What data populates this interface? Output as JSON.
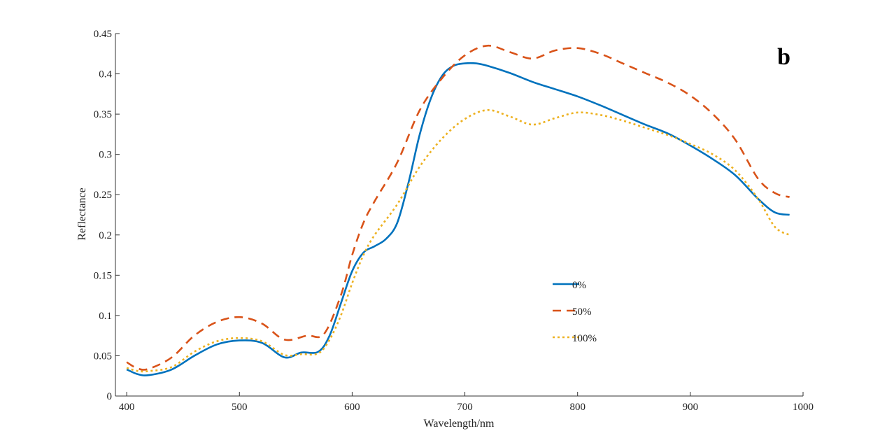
{
  "chart_data": {
    "type": "line",
    "panel_label": "b",
    "xlabel": "Wavelength/nm",
    "ylabel": "Reflectance",
    "xlim": [
      390,
      1000
    ],
    "ylim": [
      0,
      0.45
    ],
    "xticks": [
      400,
      500,
      600,
      700,
      800,
      900,
      1000
    ],
    "xtick_labels": [
      "400",
      "500",
      "600",
      "700",
      "800",
      "900",
      "1000"
    ],
    "yticks": [
      0,
      0.05,
      0.1,
      0.15,
      0.2,
      0.25,
      0.3,
      0.35,
      0.4,
      0.45
    ],
    "ytick_labels": [
      "0",
      "0.05",
      "0.1",
      "0.15",
      "0.2",
      "0.25",
      "0.3",
      "0.35",
      "0.4",
      "0.45"
    ],
    "grid": false,
    "legend_position": "center-right",
    "series": [
      {
        "name": "0%",
        "color": "#0072BD",
        "style": "solid",
        "x": [
          400,
          410,
          420,
          440,
          460,
          480,
          500,
          520,
          540,
          555,
          570,
          580,
          590,
          600,
          610,
          620,
          630,
          640,
          650,
          660,
          670,
          680,
          690,
          700,
          710,
          720,
          740,
          760,
          780,
          800,
          820,
          840,
          860,
          880,
          900,
          920,
          940,
          960,
          975,
          988
        ],
        "values": [
          0.033,
          0.027,
          0.026,
          0.033,
          0.05,
          0.064,
          0.069,
          0.066,
          0.048,
          0.054,
          0.055,
          0.075,
          0.115,
          0.155,
          0.178,
          0.186,
          0.195,
          0.215,
          0.265,
          0.325,
          0.37,
          0.398,
          0.41,
          0.413,
          0.413,
          0.41,
          0.401,
          0.39,
          0.381,
          0.372,
          0.361,
          0.349,
          0.337,
          0.326,
          0.311,
          0.294,
          0.274,
          0.245,
          0.228,
          0.225
        ]
      },
      {
        "name": "50%",
        "color": "#D95319",
        "style": "dashed",
        "x": [
          400,
          410,
          420,
          440,
          460,
          480,
          500,
          520,
          540,
          560,
          575,
          590,
          600,
          610,
          620,
          640,
          660,
          680,
          700,
          720,
          740,
          760,
          780,
          800,
          820,
          840,
          860,
          880,
          900,
          920,
          940,
          960,
          975,
          988
        ],
        "values": [
          0.042,
          0.034,
          0.034,
          0.048,
          0.075,
          0.092,
          0.098,
          0.09,
          0.07,
          0.075,
          0.077,
          0.125,
          0.175,
          0.215,
          0.242,
          0.29,
          0.355,
          0.395,
          0.423,
          0.435,
          0.427,
          0.419,
          0.429,
          0.432,
          0.425,
          0.413,
          0.401,
          0.389,
          0.373,
          0.35,
          0.318,
          0.27,
          0.252,
          0.247
        ]
      },
      {
        "name": "100%",
        "color": "#EDB120",
        "style": "dotted",
        "x": [
          400,
          410,
          420,
          440,
          460,
          480,
          500,
          520,
          540,
          555,
          570,
          580,
          590,
          600,
          610,
          620,
          640,
          660,
          680,
          700,
          720,
          740,
          760,
          780,
          800,
          820,
          840,
          860,
          880,
          900,
          920,
          940,
          960,
          975,
          988
        ],
        "values": [
          0.035,
          0.031,
          0.031,
          0.036,
          0.055,
          0.068,
          0.072,
          0.068,
          0.051,
          0.052,
          0.053,
          0.07,
          0.1,
          0.14,
          0.175,
          0.2,
          0.238,
          0.285,
          0.32,
          0.344,
          0.355,
          0.347,
          0.337,
          0.345,
          0.352,
          0.349,
          0.342,
          0.333,
          0.324,
          0.313,
          0.3,
          0.28,
          0.245,
          0.21,
          0.2
        ]
      }
    ]
  }
}
